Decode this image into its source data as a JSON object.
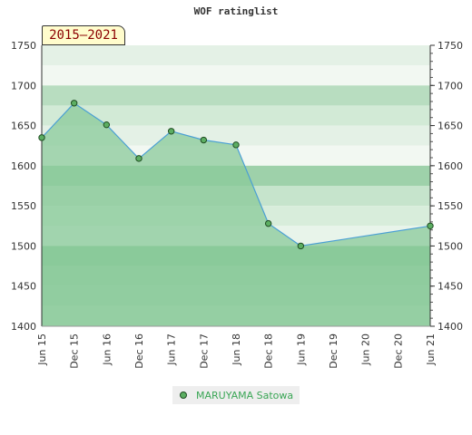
{
  "header": {
    "title": "WOF ratinglist"
  },
  "badge": {
    "period": "2015–2021"
  },
  "legend": {
    "label": "MARUYAMA Satowa"
  },
  "colors": {
    "fill": "#8ac99a",
    "line": "#4a9fd4",
    "marker": "#5cae62",
    "legend_text": "#3aa655"
  },
  "chart_data": {
    "type": "area",
    "title": "WOF ratinglist",
    "xlabel": "",
    "ylabel": "",
    "ylim": [
      1400,
      1750
    ],
    "y_ticks": [
      1400,
      1450,
      1500,
      1550,
      1600,
      1650,
      1700,
      1750
    ],
    "categories": [
      "Jun 15",
      "Dec 15",
      "Jun 16",
      "Dec 16",
      "Jun 17",
      "Dec 17",
      "Jun 18",
      "Dec 18",
      "Jun 19",
      "Dec 19",
      "Jun 20",
      "Dec 20",
      "Jun 21"
    ],
    "series": [
      {
        "name": "MARUYAMA Satowa",
        "values": [
          1635,
          1678,
          1651,
          1609,
          1643,
          1632,
          1626,
          1528,
          1500,
          null,
          null,
          null,
          1525
        ]
      }
    ],
    "grid": true,
    "legend_position": "bottom"
  }
}
